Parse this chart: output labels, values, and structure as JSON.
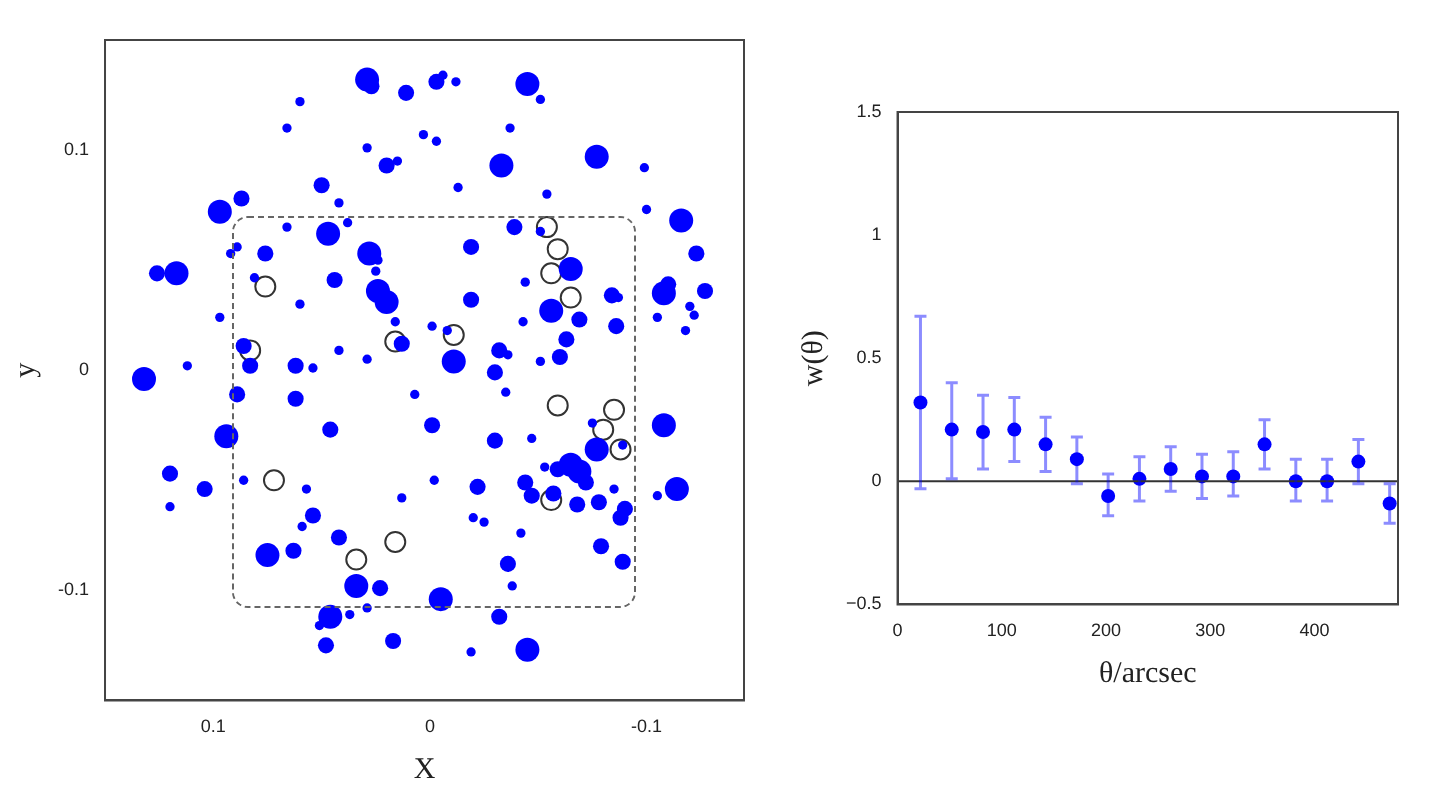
{
  "chart_data": [
    {
      "type": "bubble",
      "xlabel": "X",
      "ylabel": "y",
      "xlim": [
        0.15,
        -0.145
      ],
      "ylim": [
        -0.15,
        0.15
      ],
      "xticks": [
        0.1,
        0,
        -0.1
      ],
      "yticks": [
        -0.1,
        0,
        0.1
      ],
      "grid": false,
      "legend": false,
      "series": [
        {
          "type": "bubble",
          "color": "#0000ff",
          "x": [
            0.029,
            0.027,
            0.011,
            -0.003,
            -0.006,
            -0.012,
            -0.045,
            -0.051,
            0.06,
            0.066,
            0.003,
            -0.003,
            -0.037,
            0.029,
            0.02,
            0.015,
            -0.033,
            -0.077,
            -0.099,
            0.05,
            0.042,
            -0.013,
            0.087,
            0.097,
            -0.054,
            -0.1,
            -0.116,
            0.066,
            0.038,
            0.047,
            -0.039,
            -0.051,
            0.089,
            0.092,
            0.076,
            0.028,
            0.024,
            -0.019,
            -0.123,
            0.126,
            0.117,
            -0.065,
            0.025,
            0.081,
            0.044,
            -0.044,
            0.024,
            0.02,
            -0.108,
            -0.11,
            -0.127,
            0.06,
            -0.019,
            -0.084,
            -0.087,
            -0.056,
            -0.12,
            0.097,
            0.016,
            -0.001,
            -0.008,
            -0.043,
            -0.069,
            -0.086,
            -0.105,
            -0.122,
            -0.118,
            0.013,
            -0.063,
            0.086,
            0.042,
            -0.032,
            -0.036,
            -0.06,
            -0.051,
            -0.011,
            0.029,
            0.083,
            0.062,
            0.054,
            0.112,
            -0.03,
            0.132,
            -0.035,
            0.007,
            0.089,
            0.062,
            -0.001,
            0.046,
            0.094,
            -0.03,
            -0.047,
            -0.075,
            -0.108,
            -0.089,
            -0.077,
            -0.065,
            -0.069,
            -0.059,
            -0.053,
            -0.072,
            0.12,
            0.12,
            0.104,
            0.086,
            0.057,
            -0.002,
            -0.022,
            -0.044,
            -0.047,
            -0.057,
            -0.068,
            -0.078,
            -0.085,
            -0.09,
            -0.088,
            -0.105,
            -0.114,
            0.013,
            0.054,
            0.059,
            -0.02,
            -0.025,
            -0.042,
            0.042,
            0.063,
            0.075,
            -0.079,
            -0.089,
            -0.036,
            -0.038,
            0.034,
            0.023,
            -0.005,
            0.029,
            0.037,
            0.046,
            0.051,
            -0.032,
            0.048,
            0.017,
            -0.019,
            -0.045
          ],
          "values": [
            0.132,
            0.129,
            0.126,
            0.131,
            0.134,
            0.131,
            0.13,
            0.123,
            0.122,
            0.11,
            0.107,
            0.104,
            0.11,
            0.101,
            0.093,
            0.095,
            0.093,
            0.097,
            0.092,
            0.084,
            0.076,
            0.083,
            0.078,
            0.072,
            0.08,
            0.073,
            0.068,
            0.065,
            0.067,
            0.062,
            0.065,
            0.063,
            0.056,
            0.053,
            0.053,
            0.053,
            0.05,
            0.056,
            0.053,
            0.044,
            0.044,
            0.046,
            0.045,
            0.042,
            0.041,
            0.04,
            0.036,
            0.031,
            0.035,
            0.039,
            0.036,
            0.03,
            0.032,
            0.034,
            0.033,
            0.027,
            0.029,
            0.024,
            0.022,
            0.02,
            0.018,
            0.022,
            0.023,
            0.02,
            0.024,
            0.025,
            0.018,
            0.012,
            0.014,
            0.011,
            0.009,
            0.009,
            0.007,
            0.006,
            0.004,
            0.004,
            0.005,
            0.002,
            0.002,
            0.001,
            0.002,
            -0.001,
            -0.004,
            -0.01,
            -0.011,
            -0.011,
            -0.013,
            -0.025,
            -0.027,
            -0.03,
            -0.032,
            -0.031,
            -0.024,
            -0.025,
            -0.034,
            -0.036,
            -0.043,
            -0.046,
            -0.045,
            -0.044,
            -0.051,
            -0.047,
            -0.062,
            -0.054,
            -0.05,
            -0.054,
            -0.05,
            -0.053,
            -0.051,
            -0.057,
            -0.056,
            -0.061,
            -0.06,
            -0.054,
            -0.063,
            -0.067,
            -0.057,
            -0.054,
            -0.058,
            -0.066,
            -0.071,
            -0.067,
            -0.069,
            -0.074,
            -0.076,
            -0.082,
            -0.084,
            -0.08,
            -0.087,
            -0.088,
            -0.098,
            -0.098,
            -0.099,
            -0.104,
            -0.108,
            -0.111,
            -0.112,
            -0.116,
            -0.112,
            -0.125,
            -0.123,
            -0.128,
            -0.127
          ],
          "sizes": [
            1,
            0.45,
            0.45,
            0.45,
            0.15,
            0.15,
            1,
            0.15,
            0.15,
            0.15,
            0.15,
            0.15,
            0.15,
            0.15,
            0.45,
            0.15,
            1,
            1,
            0.15,
            0.45,
            0.15,
            0.15,
            0.45,
            1,
            0.15,
            0.15,
            1,
            0.15,
            0.15,
            1,
            0.45,
            0.15,
            0.15,
            0.15,
            0.45,
            1,
            0.15,
            0.45,
            0.45,
            0.45,
            1,
            1,
            0.15,
            0.15,
            0.45,
            0.15,
            1,
            1,
            1,
            0.45,
            0.45,
            0.15,
            0.45,
            0.45,
            0.15,
            1,
            0.15,
            0.15,
            0.15,
            0.15,
            0.15,
            0.15,
            0.45,
            0.45,
            0.15,
            0.15,
            0.15,
            0.45,
            0.45,
            0.45,
            0.15,
            0.45,
            0.15,
            0.45,
            0.15,
            1,
            0.15,
            0.45,
            0.45,
            0.15,
            0.15,
            0.45,
            1,
            0.15,
            0.15,
            0.45,
            0.45,
            0.45,
            0.45,
            1,
            0.45,
            0.15,
            0.15,
            1,
            0.15,
            1,
            1,
            1,
            0.45,
            0.15,
            0.45,
            0.45,
            0.15,
            0.45,
            0.15,
            0.15,
            0.15,
            0.45,
            0.45,
            0.45,
            0.45,
            0.45,
            0.45,
            0.15,
            0.45,
            0.45,
            0.15,
            1,
            0.15,
            0.45,
            0.15,
            0.15,
            0.15,
            0.15,
            0.45,
            0.45,
            1,
            0.45,
            0.45,
            0.45,
            0.15,
            1,
            0.45,
            1,
            0.15,
            0.15,
            1,
            0.15,
            0.45,
            0.45,
            0.45,
            0.15,
            1
          ]
        },
        {
          "type": "scatter",
          "color": "#333333",
          "marker": "circle",
          "x": [
            -0.054,
            -0.059,
            -0.056,
            -0.065,
            0.076,
            0.083,
            0.016,
            -0.011,
            -0.059,
            -0.085,
            -0.08,
            -0.088,
            -0.056,
            0.072,
            0.034,
            0.016
          ],
          "values": [
            0.065,
            0.055,
            0.044,
            0.033,
            0.038,
            0.009,
            0.013,
            0.016,
            -0.016,
            -0.018,
            -0.027,
            -0.036,
            -0.059,
            -0.05,
            -0.086,
            -0.078
          ]
        }
      ]
    },
    {
      "type": "scatter",
      "xlabel": "θ/arcsec",
      "ylabel": "w(θ)",
      "xlim": [
        0,
        480
      ],
      "ylim": [
        -0.5,
        1.5
      ],
      "xticks": [
        0,
        100,
        200,
        300,
        400
      ],
      "yticks": [
        {
          "value": -0.5,
          "label": "−0.5"
        },
        0,
        0.5,
        1,
        1.5
      ],
      "grid": false,
      "legend": false,
      "marker": "circle",
      "ref_lines": [
        {
          "axis": "y",
          "value": 0,
          "color": "#333333"
        }
      ],
      "series": [
        {
          "color": "#0000ff",
          "x": [
            22,
            52,
            82,
            112,
            142,
            172,
            202,
            232,
            262,
            292,
            322,
            352,
            382,
            412,
            442,
            472
          ],
          "values": [
            0.32,
            0.21,
            0.2,
            0.21,
            0.15,
            0.09,
            -0.06,
            0.01,
            0.05,
            0.02,
            0.02,
            0.15,
            0.0,
            0.0,
            0.08,
            -0.09
          ],
          "errors": [
            [
              -0.03,
              0.67
            ],
            [
              0.01,
              0.4
            ],
            [
              0.05,
              0.35
            ],
            [
              0.08,
              0.34
            ],
            [
              0.04,
              0.26
            ],
            [
              -0.01,
              0.18
            ],
            [
              -0.14,
              0.03
            ],
            [
              -0.08,
              0.1
            ],
            [
              -0.04,
              0.14
            ],
            [
              -0.07,
              0.11
            ],
            [
              -0.06,
              0.12
            ],
            [
              0.05,
              0.25
            ],
            [
              -0.08,
              0.09
            ],
            [
              -0.08,
              0.09
            ],
            [
              -0.01,
              0.17
            ],
            [
              -0.17,
              -0.01
            ]
          ]
        }
      ]
    }
  ]
}
